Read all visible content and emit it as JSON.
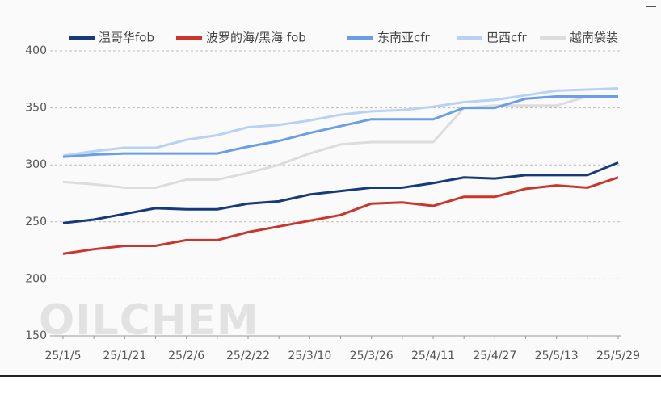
{
  "chart_data": {
    "type": "line",
    "watermark": "OILCHEM",
    "categories": [
      "25/1/5",
      null,
      "25/1/21",
      null,
      "25/2/6",
      null,
      "25/2/22",
      null,
      "25/3/10",
      null,
      "25/3/26",
      null,
      "25/4/11",
      null,
      "25/4/27",
      null,
      "25/5/13",
      null,
      "25/5/29"
    ],
    "series": [
      {
        "name": "温哥华fob",
        "color": "#173a7a",
        "values": [
          249,
          252,
          257,
          262,
          261,
          261,
          266,
          268,
          274,
          277,
          280,
          280,
          284,
          289,
          288,
          291,
          291,
          291,
          302
        ]
      },
      {
        "name": "波罗的海/黑海 fob",
        "color": "#c9372c",
        "values": [
          222,
          226,
          229,
          229,
          234,
          234,
          241,
          246,
          251,
          256,
          266,
          267,
          264,
          272,
          272,
          279,
          282,
          280,
          289
        ]
      },
      {
        "name": "东南亚cfr",
        "color": "#6a9ee8",
        "values": [
          307,
          309,
          310,
          310,
          310,
          310,
          316,
          321,
          328,
          334,
          340,
          340,
          340,
          350,
          350,
          358,
          360,
          360,
          360
        ]
      },
      {
        "name": "巴西cfr",
        "color": "#b8d1f5",
        "values": [
          308,
          312,
          315,
          315,
          322,
          326,
          333,
          335,
          339,
          344,
          347,
          348,
          351,
          355,
          357,
          361,
          365,
          366,
          367
        ]
      },
      {
        "name": "越南袋装",
        "color": "#dcdcdc",
        "values": [
          285,
          283,
          280,
          280,
          287,
          287,
          293,
          300,
          310,
          318,
          320,
          320,
          320,
          350,
          352,
          352,
          352,
          360,
          360
        ]
      }
    ],
    "ylim": [
      150,
      400
    ],
    "yticks": [
      150,
      200,
      250,
      300,
      350,
      400
    ],
    "grid": true,
    "legend": "top"
  }
}
